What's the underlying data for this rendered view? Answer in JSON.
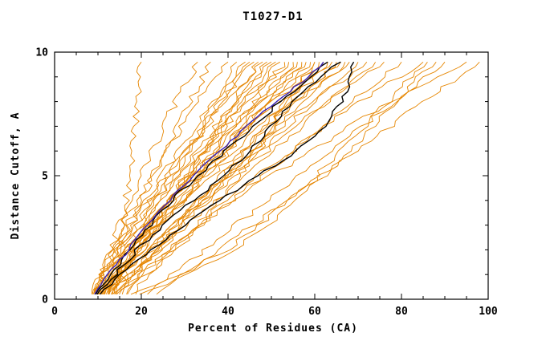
{
  "chart_data": {
    "type": "line",
    "title": "T1027-D1",
    "xlabel": "Percent of Residues (CA)",
    "ylabel": "Distance Cutoff, A",
    "xlim": [
      0,
      100
    ],
    "ylim": [
      0,
      10
    ],
    "x_ticks": [
      0,
      20,
      40,
      60,
      80,
      100
    ],
    "y_ticks": [
      0,
      5,
      10
    ],
    "x_minor_step": 5,
    "y_minor_step": 1,
    "grid": false,
    "legend": "none",
    "axis_color": "#000000",
    "y_levels": [
      0.2,
      1,
      2,
      3,
      4,
      5,
      6,
      7,
      8,
      9,
      9.6
    ],
    "series": [
      {
        "name": "model-curves-orange",
        "color": "#e68600",
        "width": 0.9,
        "jitter": 1.0,
        "curves": [
          [
            14.1,
            14.6,
            15.3,
            15.9,
            16.5,
            17.1,
            17.8,
            18.4,
            19.0,
            19.6,
            20.0
          ],
          [
            10.2,
            11.2,
            13.0,
            15.1,
            17.4,
            19.9,
            22.7,
            25.2,
            27.9,
            31.2,
            33.0
          ],
          [
            8.6,
            10.8,
            13.9,
            16.7,
            19.8,
            22.6,
            25.6,
            28.4,
            31.2,
            34.3,
            36.0
          ],
          [
            9.3,
            10.6,
            13.0,
            15.8,
            18.9,
            22.3,
            26.1,
            29.5,
            33.2,
            37.5,
            40.0
          ],
          [
            12.6,
            15.0,
            18.3,
            21.3,
            24.6,
            27.6,
            30.9,
            33.9,
            36.9,
            40.2,
            42.0
          ],
          [
            10.3,
            11.7,
            14.4,
            17.5,
            20.9,
            24.6,
            28.7,
            32.4,
            36.5,
            41.3,
            44.0
          ],
          [
            8.7,
            11.7,
            15.8,
            19.5,
            23.5,
            27.2,
            31.3,
            35.0,
            38.7,
            42.8,
            45.0
          ],
          [
            11.4,
            12.8,
            15.6,
            18.7,
            22.2,
            26.1,
            30.3,
            34.1,
            38.3,
            43.2,
            46.0
          ],
          [
            13.7,
            16.4,
            20.1,
            23.5,
            27.3,
            30.7,
            34.4,
            37.8,
            41.2,
            45.0,
            47.0
          ],
          [
            9.4,
            11.0,
            14.1,
            17.6,
            21.5,
            25.8,
            30.5,
            34.7,
            39.4,
            44.9,
            48.0
          ],
          [
            10.8,
            13.9,
            18.2,
            22.1,
            26.4,
            30.3,
            34.6,
            38.5,
            42.4,
            46.7,
            49.0
          ],
          [
            12.4,
            13.9,
            16.9,
            20.4,
            24.2,
            28.3,
            32.9,
            37.1,
            41.6,
            47.0,
            50.0
          ],
          [
            8.9,
            12.3,
            17.0,
            21.3,
            26.1,
            30.4,
            35.1,
            39.4,
            43.7,
            48.4,
            51.0
          ],
          [
            14.4,
            15.9,
            18.9,
            22.4,
            26.2,
            30.3,
            34.9,
            39.1,
            43.6,
            49.0,
            52.0
          ],
          [
            10.9,
            14.3,
            19.0,
            23.3,
            28.1,
            32.4,
            37.1,
            41.4,
            45.7,
            50.4,
            53.0
          ],
          [
            9.5,
            11.3,
            14.9,
            18.9,
            23.4,
            28.4,
            33.8,
            38.7,
            44.1,
            50.4,
            54.0
          ],
          [
            11.9,
            15.4,
            20.2,
            24.6,
            29.5,
            33.9,
            38.7,
            43.1,
            47.5,
            52.4,
            55.0
          ],
          [
            13.4,
            15.2,
            18.6,
            22.5,
            26.8,
            31.5,
            36.7,
            41.4,
            46.5,
            52.6,
            56.0
          ],
          [
            10.9,
            14.7,
            19.9,
            24.6,
            29.7,
            34.4,
            39.6,
            44.3,
            49.0,
            54.2,
            57.0
          ],
          [
            12.5,
            14.3,
            18.0,
            22.1,
            26.7,
            31.8,
            37.3,
            42.4,
            47.9,
            54.3,
            58.0
          ],
          [
            10.0,
            14.0,
            19.5,
            24.5,
            30.0,
            35.0,
            40.5,
            45.5,
            50.5,
            56.0,
            59.0
          ],
          [
            11.5,
            13.5,
            17.4,
            21.8,
            26.7,
            32.1,
            38.0,
            43.3,
            49.2,
            56.1,
            60.0
          ],
          [
            14.9,
            18.7,
            23.9,
            28.6,
            33.7,
            38.4,
            43.6,
            48.3,
            53.0,
            58.2,
            61.0
          ],
          [
            10.5,
            12.6,
            16.8,
            21.4,
            26.6,
            32.4,
            38.6,
            44.3,
            50.6,
            57.8,
            62.0
          ],
          [
            13.0,
            17.1,
            22.7,
            27.8,
            33.4,
            38.5,
            44.1,
            49.2,
            54.3,
            59.9,
            63.0
          ],
          [
            9.6,
            11.8,
            16.2,
            21.1,
            26.6,
            32.7,
            39.3,
            45.3,
            51.9,
            59.6,
            64.0
          ],
          [
            14.0,
            18.2,
            23.9,
            29.1,
            34.8,
            40.0,
            45.8,
            51.0,
            56.2,
            61.9,
            65.0
          ],
          [
            11.6,
            13.8,
            18.2,
            23.1,
            28.6,
            34.7,
            41.3,
            47.3,
            53.9,
            61.6,
            66.0
          ],
          [
            11.1,
            15.7,
            22.0,
            27.7,
            33.9,
            39.6,
            45.9,
            51.6,
            57.3,
            63.6,
            67.0
          ],
          [
            12.6,
            14.8,
            19.3,
            24.3,
            29.9,
            36.1,
            42.8,
            49.0,
            55.7,
            63.5,
            68.0
          ],
          [
            10.2,
            15.1,
            21.8,
            27.9,
            34.6,
            40.7,
            47.4,
            53.5,
            59.6,
            66.3,
            70.0
          ],
          [
            15.6,
            17.9,
            22.4,
            27.5,
            33.2,
            39.5,
            46.4,
            52.6,
            59.5,
            67.4,
            72.0
          ],
          [
            12.3,
            17.3,
            24.2,
            30.5,
            37.5,
            43.8,
            50.7,
            57.0,
            63.3,
            70.2,
            74.0
          ],
          [
            16.6,
            19.0,
            23.8,
            29.2,
            35.2,
            41.8,
            49.0,
            55.6,
            62.8,
            71.2,
            76.0
          ],
          [
            14.3,
            19.7,
            27.1,
            33.8,
            41.1,
            47.8,
            55.2,
            61.9,
            68.6,
            76.0,
            80.0
          ],
          [
            18.7,
            21.4,
            26.7,
            32.7,
            39.4,
            46.8,
            54.9,
            62.2,
            70.3,
            79.6,
            85.0
          ],
          [
            21.4,
            27.0,
            34.7,
            41.7,
            49.4,
            56.4,
            64.1,
            71.1,
            78.1,
            85.8,
            90.0
          ],
          [
            16.8,
            20.0,
            26.3,
            33.4,
            41.3,
            50.0,
            59.5,
            68.1,
            77.6,
            88.7,
            95.0
          ],
          [
            23.5,
            29.6,
            38.0,
            45.6,
            53.9,
            61.5,
            69.9,
            77.5,
            85.1,
            93.4,
            98.0
          ],
          [
            17.6,
            29.0,
            39.6,
            47.2,
            54.1,
            60.2,
            66.2,
            71.6,
            76.9,
            82.2,
            86.0
          ],
          [
            19.6,
            31.0,
            41.6,
            49.2,
            56.1,
            62.2,
            68.2,
            73.6,
            78.9,
            84.2,
            88.0
          ],
          [
            13.2,
            21.0,
            28.3,
            33.5,
            38.2,
            42.3,
            46.5,
            50.1,
            53.8,
            57.4,
            60.0
          ]
        ]
      },
      {
        "name": "model-curves-black",
        "color": "#000000",
        "width": 1.4,
        "jitter": 0.6,
        "curves": [
          [
            9.5,
            13.0,
            17.5,
            22.0,
            27.0,
            33.0,
            39.5,
            46.0,
            52.0,
            59.0,
            63.0
          ],
          [
            9.8,
            14.0,
            19.0,
            25.0,
            32.0,
            39.0,
            45.0,
            50.0,
            55.0,
            61.0,
            66.0
          ],
          [
            10.5,
            15.0,
            22.0,
            30.0,
            38.0,
            47.0,
            56.0,
            62.0,
            66.0,
            68.5,
            69.0
          ]
        ]
      },
      {
        "name": "model-curve-blue",
        "color": "#3a22b4",
        "width": 1.4,
        "jitter": 0.4,
        "curves": [
          [
            9.2,
            12.5,
            17.0,
            21.5,
            26.5,
            32.0,
            38.0,
            44.5,
            51.0,
            58.5,
            62.0
          ]
        ]
      }
    ]
  }
}
